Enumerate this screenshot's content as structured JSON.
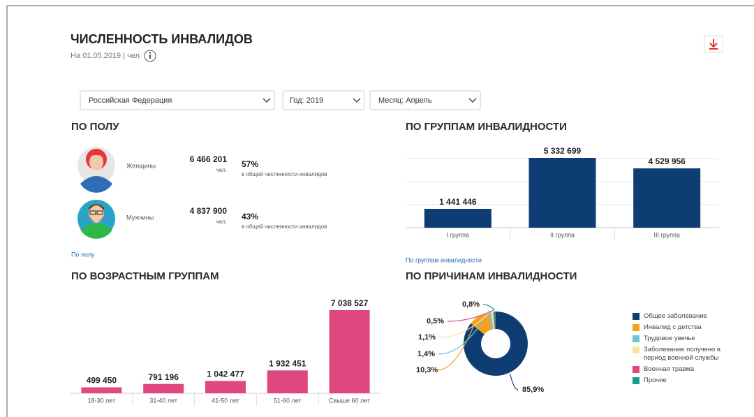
{
  "header": {
    "title": "ЧИСЛЕННОСТЬ ИНВАЛИДОВ",
    "subtitle": "На 01.05.2019 | чел"
  },
  "filters": [
    "Российская  Федерация",
    "Год: 2019",
    "Месяц: Апрель"
  ],
  "gender": {
    "title": "ПО ПОЛУ",
    "rows": [
      {
        "label": "Женщины",
        "value": "6 466 201",
        "unit": "чел.",
        "percent": "57%",
        "note": "в общей численности инвалидов"
      },
      {
        "label": "Мужчины",
        "value": "4 837 900",
        "unit": "чел.",
        "percent": "43%",
        "note": "в общей численности инвалидов"
      }
    ],
    "link": "По полу"
  },
  "chart_data": [
    {
      "type": "bar",
      "title": "ПО ГРУППАМ ИНВАЛИДНОСТИ",
      "categories": [
        "I группа",
        "II группа",
        "III группа"
      ],
      "values": [
        1441446,
        5332699,
        4529956
      ],
      "value_labels": [
        "1 441 446",
        "5 332 699",
        "4 529 956"
      ],
      "color": "#0d3d73",
      "link": "По группам инвалидности"
    },
    {
      "type": "bar",
      "title": "ПО ВОЗРАСТНЫМ ГРУППАМ",
      "categories": [
        "18-30 лет",
        "31-40 лет",
        "41-50 лет",
        "51-60 лет",
        "Свыше 60 лет"
      ],
      "values": [
        499450,
        791196,
        1042477,
        1932451,
        7038527
      ],
      "value_labels": [
        "499 450",
        "791 196",
        "1 042 477",
        "1 932 451",
        "7 038 527"
      ],
      "color": "#e0467f"
    },
    {
      "type": "pie",
      "title": "ПО ПРИЧИНАМ ИНВАЛИДНОСТИ",
      "categories": [
        "Общее заболевание",
        "Инвалид с детства",
        "Трудовое увечье",
        "Заболевание получено в период военной службы",
        "Военная травма",
        "Прочие"
      ],
      "values": [
        85.9,
        10.3,
        1.4,
        1.1,
        0.5,
        0.8
      ],
      "value_labels": [
        "85,9%",
        "10,3%",
        "1,4%",
        "1,1%",
        "0,5%",
        "0,8%"
      ],
      "colors": [
        "#0d3d73",
        "#f5a31a",
        "#6cc4d8",
        "#fbe3a0",
        "#e0467f",
        "#1a9a8e"
      ],
      "legend": "right"
    }
  ]
}
